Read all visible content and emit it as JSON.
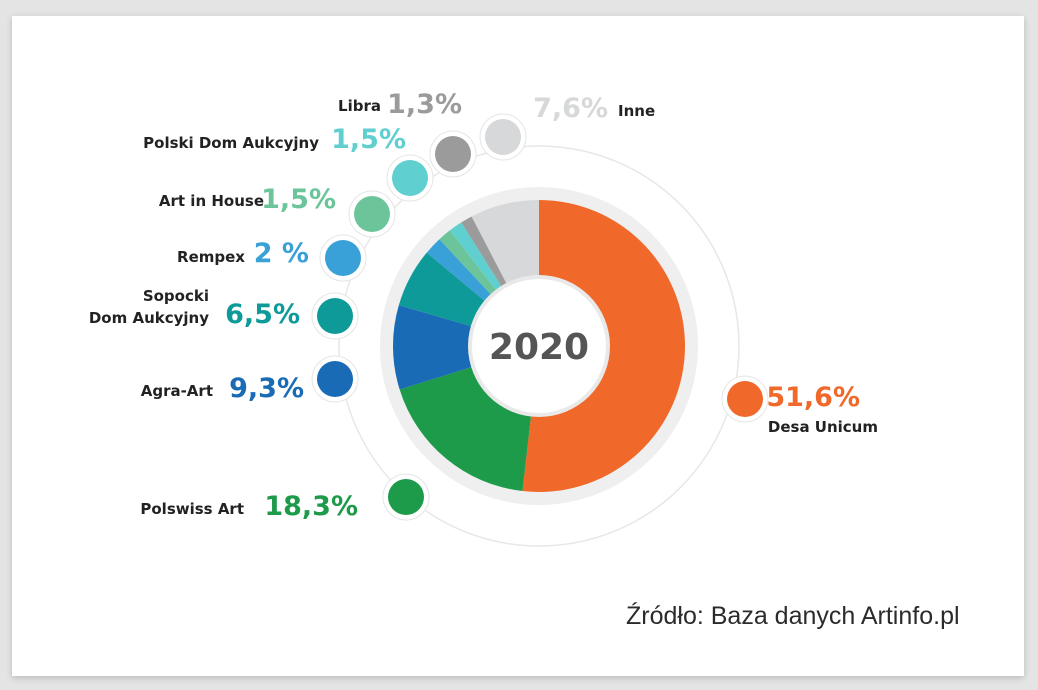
{
  "chart_data": {
    "type": "pie",
    "center_label": "2020",
    "slices": [
      {
        "label": "Desa Unicum",
        "value": 51.6,
        "value_label": "51,6%",
        "color": "#f0692a"
      },
      {
        "label": "Polswiss Art",
        "value": 18.3,
        "value_label": "18,3%",
        "color": "#1e9a4b"
      },
      {
        "label": "Agra-Art",
        "value": 9.3,
        "value_label": "9,3%",
        "color": "#1a6bb5"
      },
      {
        "label": "Sopocki Dom Aukcyjny",
        "value": 6.5,
        "value_label": "6,5%",
        "color": "#0f9a9a"
      },
      {
        "label": "Rempex",
        "value": 2.0,
        "value_label": "2 %",
        "color": "#3aa0d8"
      },
      {
        "label": "Art in House",
        "value": 1.5,
        "value_label": "1,5%",
        "color": "#6cc59a"
      },
      {
        "label": "Polski Dom Aukcyjny",
        "value": 1.5,
        "value_label": "1,5%",
        "color": "#5fcfd0"
      },
      {
        "label": "Libra",
        "value": 1.3,
        "value_label": "1,3%",
        "color": "#9b9b9b"
      },
      {
        "label": "Inne",
        "value": 7.6,
        "value_label": "7,6%",
        "color": "#d7d8d9"
      }
    ]
  },
  "source": "Źródło: Baza danych Artinfo.pl"
}
